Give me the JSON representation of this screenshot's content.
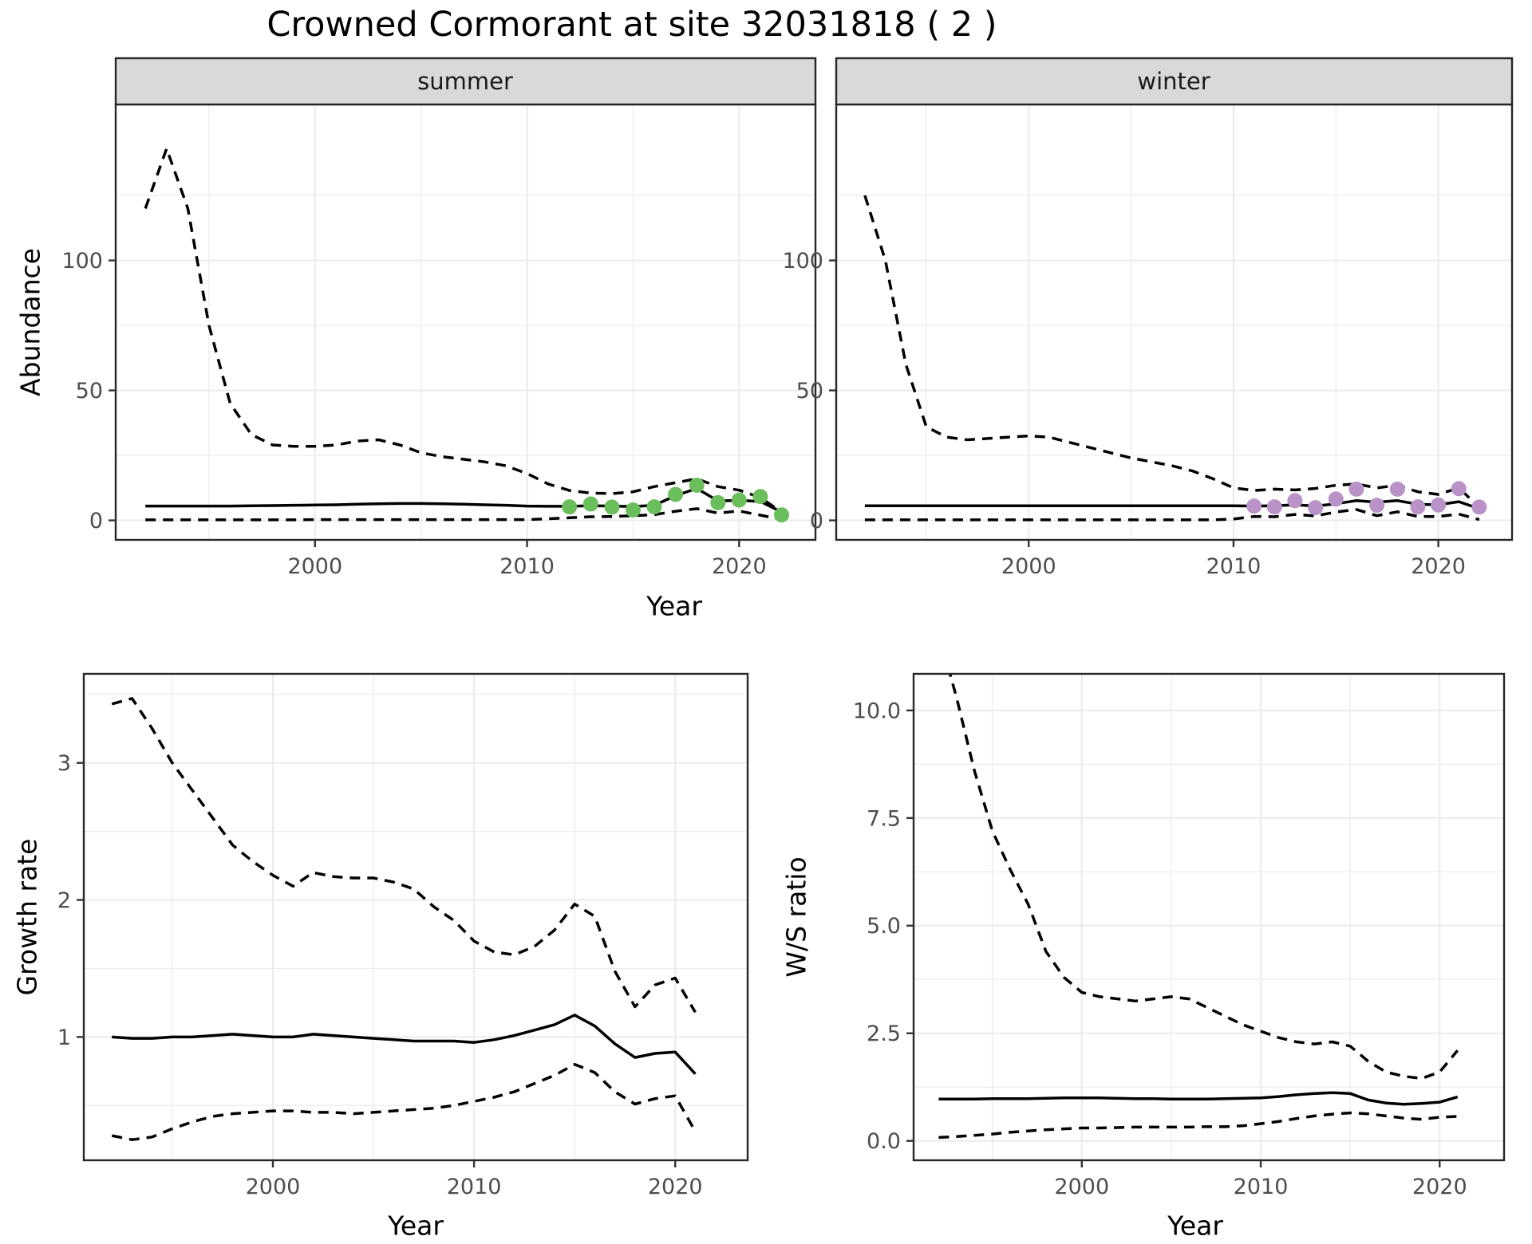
{
  "title": "Crowned Cormorant at site 32031818 ( 2 )",
  "axis_titles": {
    "y_abundance": "Abundance",
    "x_year": "Year",
    "y_growth": "Growth rate",
    "y_ws": "W/S ratio"
  },
  "colors": {
    "summer_point": "#6BBE5C",
    "winter_point": "#B993C8",
    "fit_line": "#000000",
    "grid": "#EBEBEB",
    "strip_fill": "#D9D9D9",
    "panel_border": "#262626",
    "tick_text": "#4D4D4D",
    "background": "#FFFFFF"
  },
  "chart_data": [
    {
      "id": "abundance-summer",
      "type": "line",
      "facet_label": "summer",
      "xlabel": "Year",
      "ylabel": "Abundance",
      "xlim": [
        1990.6,
        2023.6
      ],
      "ylim": [
        -7.5,
        160
      ],
      "x_major_ticks": [
        2000,
        2010,
        2020
      ],
      "x_minor_ticks": [
        1995,
        2005,
        2015
      ],
      "y_major_ticks": [
        0,
        50,
        100
      ],
      "y_tick_labels": [
        "0",
        "50",
        "100"
      ],
      "y_minor_ticks": [
        25,
        75,
        125
      ],
      "years": [
        1992,
        1993,
        1994,
        1995,
        1996,
        1997,
        1998,
        1999,
        2000,
        2001,
        2002,
        2003,
        2004,
        2005,
        2006,
        2007,
        2008,
        2009,
        2010,
        2011,
        2012,
        2013,
        2014,
        2015,
        2016,
        2017,
        2018,
        2019,
        2020,
        2021,
        2022
      ],
      "series": [
        {
          "name": "upper_95ci",
          "style": "dashed",
          "values": [
            120,
            143,
            120,
            75,
            45,
            33,
            29,
            28.5,
            28.5,
            29,
            30.5,
            31,
            29,
            26,
            24.5,
            23.5,
            22.5,
            21,
            18,
            14,
            11.5,
            10.5,
            10.3,
            11,
            13,
            14.5,
            16,
            13,
            11.6,
            8.8,
            3.2
          ]
        },
        {
          "name": "median",
          "style": "solid",
          "values": [
            5.5,
            5.5,
            5.5,
            5.5,
            5.5,
            5.6,
            5.7,
            5.8,
            5.9,
            6.0,
            6.2,
            6.4,
            6.5,
            6.5,
            6.4,
            6.2,
            6.0,
            5.8,
            5.5,
            5.4,
            5.4,
            5.6,
            5.5,
            5.3,
            5.8,
            9.5,
            12.3,
            7.5,
            7.7,
            7.3,
            3.2
          ]
        },
        {
          "name": "lower_95ci",
          "style": "dashed",
          "values": [
            0.2,
            0.2,
            0.2,
            0.2,
            0.2,
            0.2,
            0.2,
            0.2,
            0.3,
            0.3,
            0.3,
            0.3,
            0.3,
            0.3,
            0.3,
            0.3,
            0.3,
            0.3,
            0.3,
            0.6,
            1.0,
            1.4,
            1.5,
            1.8,
            2.2,
            3.5,
            4.5,
            2.8,
            3.6,
            2.0,
            0.3
          ]
        }
      ],
      "observed_points": {
        "color_key": "summer_point",
        "years": [
          2012,
          2013,
          2014,
          2015,
          2016,
          2017,
          2018,
          2019,
          2020,
          2021,
          2022
        ],
        "values": [
          5.2,
          6.3,
          5.1,
          4.0,
          5.2,
          10.0,
          13.5,
          6.8,
          7.8,
          9.2,
          2.1
        ]
      }
    },
    {
      "id": "abundance-winter",
      "type": "line",
      "facet_label": "winter",
      "xlabel": "Year",
      "ylabel": "Abundance",
      "xlim": [
        1990.6,
        2023.6
      ],
      "ylim": [
        -7.5,
        160
      ],
      "x_major_ticks": [
        2000,
        2010,
        2020
      ],
      "x_minor_ticks": [
        1995,
        2005,
        2015
      ],
      "y_major_ticks": [
        0,
        50,
        100
      ],
      "y_tick_labels": [
        "0",
        "50",
        "100"
      ],
      "y_minor_ticks": [
        25,
        75,
        125
      ],
      "years": [
        1992,
        1993,
        1994,
        1995,
        1996,
        1997,
        1998,
        1999,
        2000,
        2001,
        2002,
        2003,
        2004,
        2005,
        2006,
        2007,
        2008,
        2009,
        2010,
        2011,
        2012,
        2013,
        2014,
        2015,
        2016,
        2017,
        2018,
        2019,
        2020,
        2021,
        2022
      ],
      "series": [
        {
          "name": "upper_95ci",
          "style": "dashed",
          "values": [
            125,
            100,
            60,
            36,
            32,
            31,
            31.5,
            32,
            32.5,
            32,
            30,
            28,
            26,
            24,
            22.5,
            21,
            19,
            16,
            12.5,
            11.5,
            12,
            11.7,
            12.3,
            13.5,
            14,
            12.5,
            13.5,
            11,
            10,
            12.5,
            5
          ]
        },
        {
          "name": "median",
          "style": "solid",
          "values": [
            5.6,
            5.6,
            5.6,
            5.6,
            5.6,
            5.6,
            5.6,
            5.6,
            5.6,
            5.6,
            5.6,
            5.6,
            5.6,
            5.6,
            5.6,
            5.6,
            5.6,
            5.6,
            5.6,
            5.5,
            5.6,
            6.0,
            5.5,
            6.4,
            7.6,
            7.0,
            7.6,
            6.2,
            6.0,
            7.2,
            4.5
          ]
        },
        {
          "name": "lower_95ci",
          "style": "dashed",
          "values": [
            0.2,
            0.2,
            0.2,
            0.2,
            0.2,
            0.2,
            0.2,
            0.2,
            0.2,
            0.2,
            0.2,
            0.2,
            0.2,
            0.2,
            0.2,
            0.2,
            0.2,
            0.2,
            0.5,
            1.5,
            1.4,
            2.3,
            1.7,
            3.2,
            4.2,
            1.8,
            3.3,
            1.5,
            1.5,
            2.4,
            0.3
          ]
        }
      ],
      "observed_points": {
        "color_key": "winter_point",
        "years": [
          2011,
          2012,
          2013,
          2014,
          2015,
          2016,
          2017,
          2018,
          2019,
          2020,
          2021,
          2022
        ],
        "values": [
          5.5,
          5.2,
          7.6,
          4.9,
          8.2,
          12.0,
          5.8,
          12.0,
          5.2,
          5.9,
          12.2,
          5.1
        ]
      }
    },
    {
      "id": "growth-rate",
      "type": "line",
      "facet_label": "",
      "xlabel": "Year",
      "ylabel": "Growth rate",
      "xlim": [
        1990.6,
        2023.6
      ],
      "ylim": [
        0.1,
        3.65
      ],
      "x_major_ticks": [
        2000,
        2010,
        2020
      ],
      "x_minor_ticks": [
        1995,
        2005,
        2015
      ],
      "y_major_ticks": [
        1,
        2,
        3
      ],
      "y_tick_labels": [
        "1",
        "2",
        "3"
      ],
      "y_minor_ticks": [
        0.5,
        1.5,
        2.5,
        3.5
      ],
      "years": [
        1992,
        1993,
        1994,
        1995,
        1996,
        1997,
        1998,
        1999,
        2000,
        2001,
        2002,
        2003,
        2004,
        2005,
        2006,
        2007,
        2008,
        2009,
        2010,
        2011,
        2012,
        2013,
        2014,
        2015,
        2016,
        2017,
        2018,
        2019,
        2020,
        2021
      ],
      "series": [
        {
          "name": "upper_95ci",
          "style": "dashed",
          "values": [
            3.43,
            3.47,
            3.25,
            3.0,
            2.8,
            2.6,
            2.4,
            2.28,
            2.18,
            2.1,
            2.2,
            2.17,
            2.16,
            2.16,
            2.13,
            2.08,
            1.95,
            1.85,
            1.7,
            1.62,
            1.6,
            1.66,
            1.78,
            1.97,
            1.88,
            1.48,
            1.22,
            1.38,
            1.43,
            1.18
          ]
        },
        {
          "name": "median",
          "style": "solid",
          "values": [
            1.0,
            0.99,
            0.99,
            1.0,
            1.0,
            1.01,
            1.02,
            1.01,
            1.0,
            1.0,
            1.02,
            1.01,
            1.0,
            0.99,
            0.98,
            0.97,
            0.97,
            0.97,
            0.96,
            0.98,
            1.01,
            1.05,
            1.09,
            1.16,
            1.08,
            0.95,
            0.85,
            0.88,
            0.89,
            0.73
          ]
        },
        {
          "name": "lower_95ci",
          "style": "dashed",
          "values": [
            0.28,
            0.25,
            0.27,
            0.33,
            0.38,
            0.42,
            0.44,
            0.45,
            0.46,
            0.46,
            0.45,
            0.45,
            0.44,
            0.45,
            0.46,
            0.47,
            0.48,
            0.5,
            0.53,
            0.56,
            0.6,
            0.66,
            0.72,
            0.8,
            0.74,
            0.6,
            0.51,
            0.55,
            0.57,
            0.31
          ]
        }
      ],
      "observed_points": null
    },
    {
      "id": "ws-ratio",
      "type": "line",
      "facet_label": "",
      "xlabel": "Year",
      "ylabel": "W/S ratio",
      "xlim": [
        1990.6,
        2023.6
      ],
      "ylim": [
        -0.45,
        10.85
      ],
      "x_major_ticks": [
        2000,
        2010,
        2020
      ],
      "x_minor_ticks": [
        1995,
        2005,
        2015
      ],
      "y_major_ticks": [
        0,
        2.5,
        5,
        7.5,
        10
      ],
      "y_tick_labels": [
        "0.0",
        "2.5",
        "5.0",
        "7.5",
        "10.0"
      ],
      "y_minor_ticks": [
        1.25,
        3.75,
        6.25,
        8.75
      ],
      "years": [
        1992,
        1993,
        1994,
        1995,
        1996,
        1997,
        1998,
        1999,
        2000,
        2001,
        2002,
        2003,
        2004,
        2005,
        2006,
        2007,
        2008,
        2009,
        2010,
        2011,
        2012,
        2013,
        2014,
        2015,
        2016,
        2017,
        2018,
        2019,
        2020,
        2021
      ],
      "series": [
        {
          "name": "upper_95ci",
          "style": "dashed",
          "values": [
            11.8,
            10.3,
            8.6,
            7.2,
            6.3,
            5.5,
            4.4,
            3.8,
            3.45,
            3.35,
            3.3,
            3.25,
            3.3,
            3.35,
            3.3,
            3.1,
            2.9,
            2.7,
            2.55,
            2.4,
            2.3,
            2.25,
            2.3,
            2.2,
            1.85,
            1.6,
            1.5,
            1.45,
            1.6,
            2.1
          ]
        },
        {
          "name": "median",
          "style": "solid",
          "values": [
            0.97,
            0.97,
            0.97,
            0.98,
            0.98,
            0.98,
            0.99,
            1.0,
            1.0,
            1.0,
            0.99,
            0.98,
            0.98,
            0.97,
            0.97,
            0.97,
            0.98,
            0.99,
            1.0,
            1.03,
            1.07,
            1.1,
            1.12,
            1.1,
            0.95,
            0.88,
            0.85,
            0.87,
            0.9,
            1.02
          ]
        },
        {
          "name": "lower_95ci",
          "style": "dashed",
          "values": [
            0.08,
            0.1,
            0.13,
            0.16,
            0.2,
            0.23,
            0.26,
            0.28,
            0.3,
            0.3,
            0.31,
            0.32,
            0.32,
            0.32,
            0.32,
            0.33,
            0.33,
            0.35,
            0.4,
            0.45,
            0.52,
            0.58,
            0.62,
            0.65,
            0.63,
            0.58,
            0.53,
            0.5,
            0.55,
            0.57
          ]
        }
      ],
      "observed_points": null
    }
  ]
}
